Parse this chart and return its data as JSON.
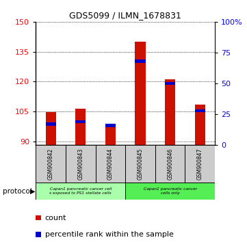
{
  "title": "GDS5099 / ILMN_1678831",
  "samples": [
    "GSM900842",
    "GSM900843",
    "GSM900844",
    "GSM900845",
    "GSM900846",
    "GSM900847"
  ],
  "count_values": [
    104.5,
    106.5,
    98.5,
    140.0,
    121.0,
    108.5
  ],
  "percentile_values": [
    17,
    19,
    16,
    68,
    50,
    28
  ],
  "ylim_left": [
    88,
    150
  ],
  "ylim_right": [
    0,
    100
  ],
  "yticks_left": [
    90,
    105,
    120,
    135,
    150
  ],
  "yticks_right": [
    0,
    25,
    50,
    75,
    100
  ],
  "bar_color": "#cc1100",
  "percentile_color": "#0000cc",
  "group1_label": "Capan1 pancreatic cancer cell\ns exposed to PS1 stellate cells",
  "group2_label": "Capan1 pancreatic cancer\ncells only",
  "group1_color": "#aaffaa",
  "group2_color": "#55ee55",
  "protocol_label": "protocol",
  "legend_count": "count",
  "legend_percentile": "percentile rank within the sample",
  "base_value": 88,
  "bar_width": 0.35
}
